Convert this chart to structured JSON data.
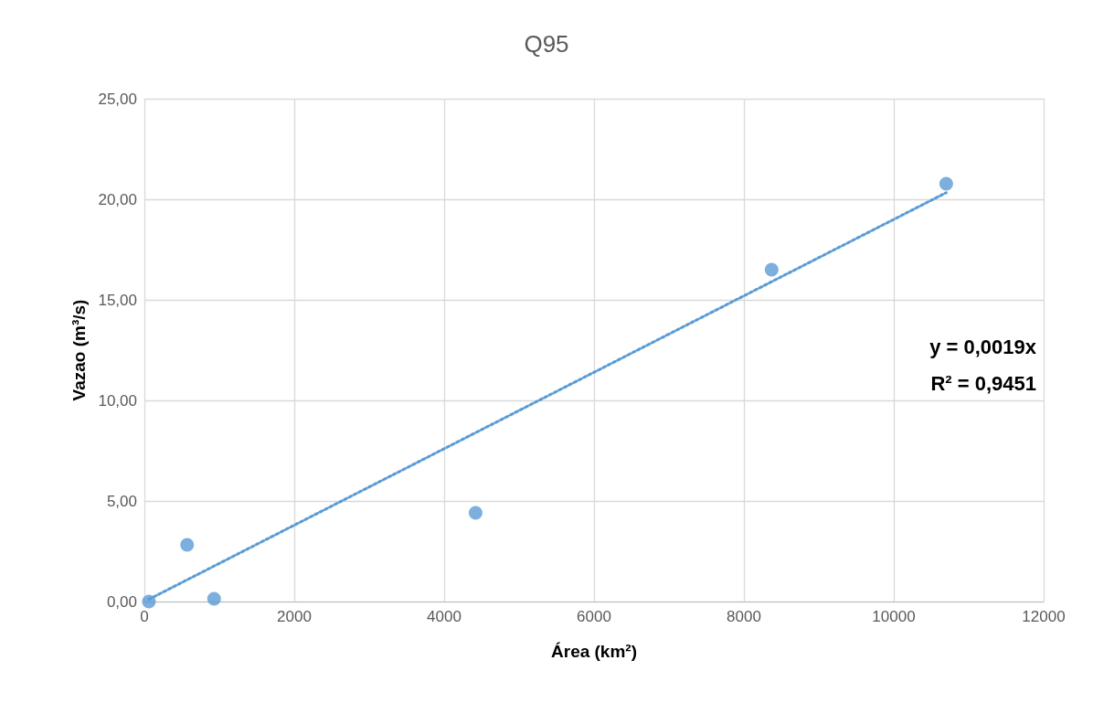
{
  "chart_data": {
    "type": "scatter",
    "title": "Q95",
    "xlabel": "Área (km²)",
    "ylabel": "Vazao (m³/s)",
    "x": [
      60,
      570,
      930,
      4420,
      8370,
      10700
    ],
    "series": [
      {
        "type": "scatter",
        "color": "#5b9bd5",
        "values": [
          0,
          2.82,
          0.14,
          4.41,
          16.5,
          20.77
        ],
        "marker": "circle"
      },
      {
        "type": "line",
        "color": "#5b9bd5",
        "x": [
          60,
          10700
        ],
        "values": [
          0.11,
          20.33
        ],
        "marker": "none",
        "line_style": "dotted"
      }
    ],
    "xlim": [
      0,
      12000
    ],
    "xticks": [
      0,
      2000,
      4000,
      6000,
      8000,
      10000,
      12000
    ],
    "ylim": [
      0,
      25
    ],
    "yticks": [
      {
        "value": 0,
        "label": "0,00"
      },
      {
        "value": 5,
        "label": "5,00"
      },
      {
        "value": 10,
        "label": "10,00"
      },
      {
        "value": 15,
        "label": "15,00"
      },
      {
        "value": 20,
        "label": "20,00"
      },
      {
        "value": 25,
        "label": "25,00"
      }
    ],
    "grid": true,
    "annotations": [
      "y = 0,0019x",
      "R² = 0,9451"
    ]
  }
}
